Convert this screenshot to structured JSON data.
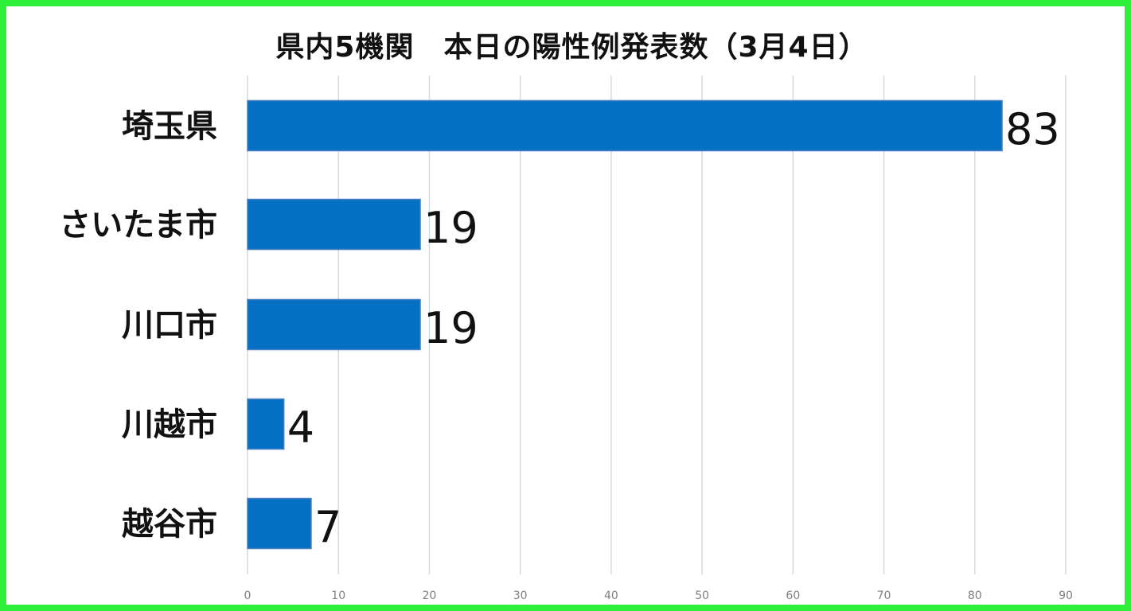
{
  "colors": {
    "border": "#2ef03a",
    "bar": "#0470c4",
    "bar_edge": "#4a7fc0",
    "grid": "#d9d9d9",
    "label": "#111111",
    "tick": "#7f7f7f"
  },
  "chart_data": {
    "type": "bar",
    "orientation": "horizontal",
    "title": "県内5機関　本日の陽性例発表数（3月4日）",
    "categories": [
      "埼玉県",
      "さいたま市",
      "川口市",
      "川越市",
      "越谷市"
    ],
    "series": [
      {
        "values": [
          83,
          19,
          19,
          4,
          7
        ]
      }
    ],
    "data_labels": [
      "83",
      "19",
      "19",
      "4",
      "7"
    ],
    "xlim": [
      0,
      90
    ],
    "x_ticks": [
      "0",
      "10",
      "20",
      "30",
      "40",
      "50",
      "60",
      "70",
      "80",
      "90"
    ],
    "xlabel": "",
    "ylabel": "",
    "grid": true,
    "legend": "none"
  }
}
